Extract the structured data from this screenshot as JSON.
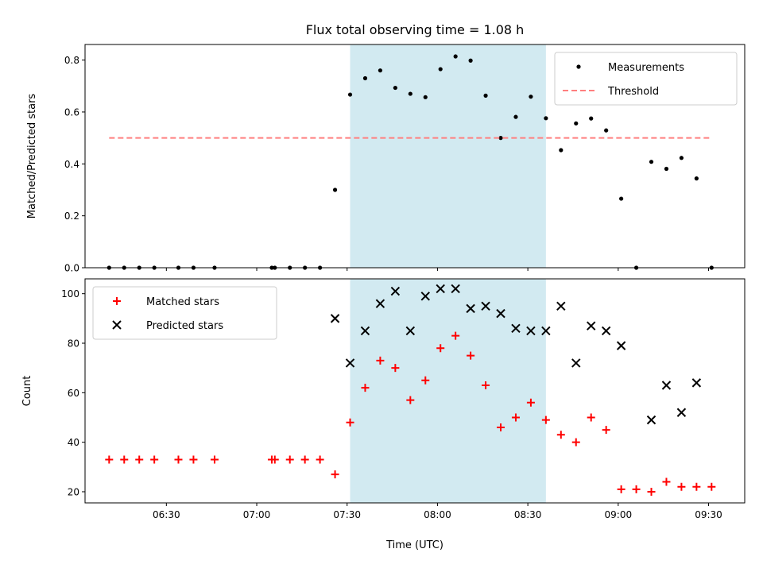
{
  "chart_data": [
    {
      "type": "scatter",
      "title": "Flux total observing time = 1.08 h",
      "xlabel": "",
      "ylabel": "Matched/Predicted stars",
      "ylim": [
        0,
        0.86
      ],
      "xlim": [
        "06:03",
        "09:42"
      ],
      "x_ticks": [
        "06:30",
        "07:00",
        "07:30",
        "08:00",
        "08:30",
        "09:00",
        "09:30"
      ],
      "x_tick_labels_visible": false,
      "y_ticks": [
        0.0,
        0.2,
        0.4,
        0.6,
        0.8
      ],
      "y_tick_labels": [
        "0.0",
        "0.2",
        "0.4",
        "0.6",
        "0.8"
      ],
      "shaded_region": {
        "start": "07:31",
        "end": "08:36",
        "color": "#add8e6"
      },
      "legend_position": "top-right",
      "series": [
        {
          "name": "Measurements",
          "marker": "dot",
          "color": "#000000",
          "points": [
            {
              "x": "06:11",
              "y": 0.0
            },
            {
              "x": "06:16",
              "y": 0.0
            },
            {
              "x": "06:21",
              "y": 0.0
            },
            {
              "x": "06:26",
              "y": 0.0
            },
            {
              "x": "06:34",
              "y": 0.0
            },
            {
              "x": "06:39",
              "y": 0.0
            },
            {
              "x": "06:46",
              "y": 0.0
            },
            {
              "x": "07:05",
              "y": 0.0
            },
            {
              "x": "07:06",
              "y": 0.0
            },
            {
              "x": "07:11",
              "y": 0.0
            },
            {
              "x": "07:16",
              "y": 0.0
            },
            {
              "x": "07:21",
              "y": 0.0
            },
            {
              "x": "07:26",
              "y": 0.3
            },
            {
              "x": "07:31",
              "y": 0.667
            },
            {
              "x": "07:36",
              "y": 0.73
            },
            {
              "x": "07:41",
              "y": 0.76
            },
            {
              "x": "07:46",
              "y": 0.693
            },
            {
              "x": "07:51",
              "y": 0.67
            },
            {
              "x": "07:56",
              "y": 0.657
            },
            {
              "x": "08:01",
              "y": 0.765
            },
            {
              "x": "08:06",
              "y": 0.814
            },
            {
              "x": "08:11",
              "y": 0.798
            },
            {
              "x": "08:16",
              "y": 0.663
            },
            {
              "x": "08:21",
              "y": 0.5
            },
            {
              "x": "08:26",
              "y": 0.581
            },
            {
              "x": "08:31",
              "y": 0.659
            },
            {
              "x": "08:36",
              "y": 0.576
            },
            {
              "x": "08:41",
              "y": 0.453
            },
            {
              "x": "08:46",
              "y": 0.556
            },
            {
              "x": "08:51",
              "y": 0.575
            },
            {
              "x": "08:56",
              "y": 0.529
            },
            {
              "x": "09:01",
              "y": 0.266
            },
            {
              "x": "09:06",
              "y": 0.0
            },
            {
              "x": "09:11",
              "y": 0.408
            },
            {
              "x": "09:16",
              "y": 0.381
            },
            {
              "x": "09:21",
              "y": 0.423
            },
            {
              "x": "09:26",
              "y": 0.344
            },
            {
              "x": "09:31",
              "y": 0.0
            }
          ]
        },
        {
          "name": "Threshold",
          "style": "dashed",
          "color": "#ff7f7f",
          "points": [
            {
              "x": "06:11",
              "y": 0.5
            },
            {
              "x": "09:31",
              "y": 0.5
            }
          ]
        }
      ]
    },
    {
      "type": "scatter",
      "title": "",
      "xlabel": "Time (UTC)",
      "ylabel": "Count",
      "ylim": [
        15.5,
        106
      ],
      "xlim": [
        "06:03",
        "09:42"
      ],
      "x_ticks": [
        "06:30",
        "07:00",
        "07:30",
        "08:00",
        "08:30",
        "09:00",
        "09:30"
      ],
      "x_tick_labels": [
        "06:30",
        "07:00",
        "07:30",
        "08:00",
        "08:30",
        "09:00",
        "09:30"
      ],
      "y_ticks": [
        20,
        40,
        60,
        80,
        100
      ],
      "y_tick_labels": [
        "20",
        "40",
        "60",
        "80",
        "100"
      ],
      "shaded_region": {
        "start": "07:31",
        "end": "08:36",
        "color": "#add8e6"
      },
      "legend_position": "top-left",
      "series": [
        {
          "name": "Matched stars",
          "marker": "plus",
          "color": "#ff0000",
          "points": [
            {
              "x": "06:11",
              "y": 33
            },
            {
              "x": "06:16",
              "y": 33
            },
            {
              "x": "06:21",
              "y": 33
            },
            {
              "x": "06:26",
              "y": 33
            },
            {
              "x": "06:34",
              "y": 33
            },
            {
              "x": "06:39",
              "y": 33
            },
            {
              "x": "06:46",
              "y": 33
            },
            {
              "x": "07:05",
              "y": 33
            },
            {
              "x": "07:06",
              "y": 33
            },
            {
              "x": "07:11",
              "y": 33
            },
            {
              "x": "07:16",
              "y": 33
            },
            {
              "x": "07:21",
              "y": 33
            },
            {
              "x": "07:26",
              "y": 27
            },
            {
              "x": "07:31",
              "y": 48
            },
            {
              "x": "07:36",
              "y": 62
            },
            {
              "x": "07:41",
              "y": 73
            },
            {
              "x": "07:46",
              "y": 70
            },
            {
              "x": "07:51",
              "y": 57
            },
            {
              "x": "07:56",
              "y": 65
            },
            {
              "x": "08:01",
              "y": 78
            },
            {
              "x": "08:06",
              "y": 83
            },
            {
              "x": "08:11",
              "y": 75
            },
            {
              "x": "08:16",
              "y": 63
            },
            {
              "x": "08:21",
              "y": 46
            },
            {
              "x": "08:26",
              "y": 50
            },
            {
              "x": "08:31",
              "y": 56
            },
            {
              "x": "08:36",
              "y": 49
            },
            {
              "x": "08:41",
              "y": 43
            },
            {
              "x": "08:46",
              "y": 40
            },
            {
              "x": "08:51",
              "y": 50
            },
            {
              "x": "08:56",
              "y": 45
            },
            {
              "x": "09:01",
              "y": 21
            },
            {
              "x": "09:06",
              "y": 21
            },
            {
              "x": "09:11",
              "y": 20
            },
            {
              "x": "09:16",
              "y": 24
            },
            {
              "x": "09:21",
              "y": 22
            },
            {
              "x": "09:26",
              "y": 22
            },
            {
              "x": "09:31",
              "y": 22
            }
          ]
        },
        {
          "name": "Predicted stars",
          "marker": "x",
          "color": "#000000",
          "points": [
            {
              "x": "07:26",
              "y": 90
            },
            {
              "x": "07:31",
              "y": 72
            },
            {
              "x": "07:36",
              "y": 85
            },
            {
              "x": "07:41",
              "y": 96
            },
            {
              "x": "07:46",
              "y": 101
            },
            {
              "x": "07:51",
              "y": 85
            },
            {
              "x": "07:56",
              "y": 99
            },
            {
              "x": "08:01",
              "y": 102
            },
            {
              "x": "08:06",
              "y": 102
            },
            {
              "x": "08:11",
              "y": 94
            },
            {
              "x": "08:16",
              "y": 95
            },
            {
              "x": "08:21",
              "y": 92
            },
            {
              "x": "08:26",
              "y": 86
            },
            {
              "x": "08:31",
              "y": 85
            },
            {
              "x": "08:36",
              "y": 85
            },
            {
              "x": "08:41",
              "y": 95
            },
            {
              "x": "08:46",
              "y": 72
            },
            {
              "x": "08:51",
              "y": 87
            },
            {
              "x": "08:56",
              "y": 85
            },
            {
              "x": "09:01",
              "y": 79
            },
            {
              "x": "09:11",
              "y": 49
            },
            {
              "x": "09:16",
              "y": 63
            },
            {
              "x": "09:21",
              "y": 52
            },
            {
              "x": "09:26",
              "y": 64
            }
          ]
        }
      ]
    }
  ]
}
